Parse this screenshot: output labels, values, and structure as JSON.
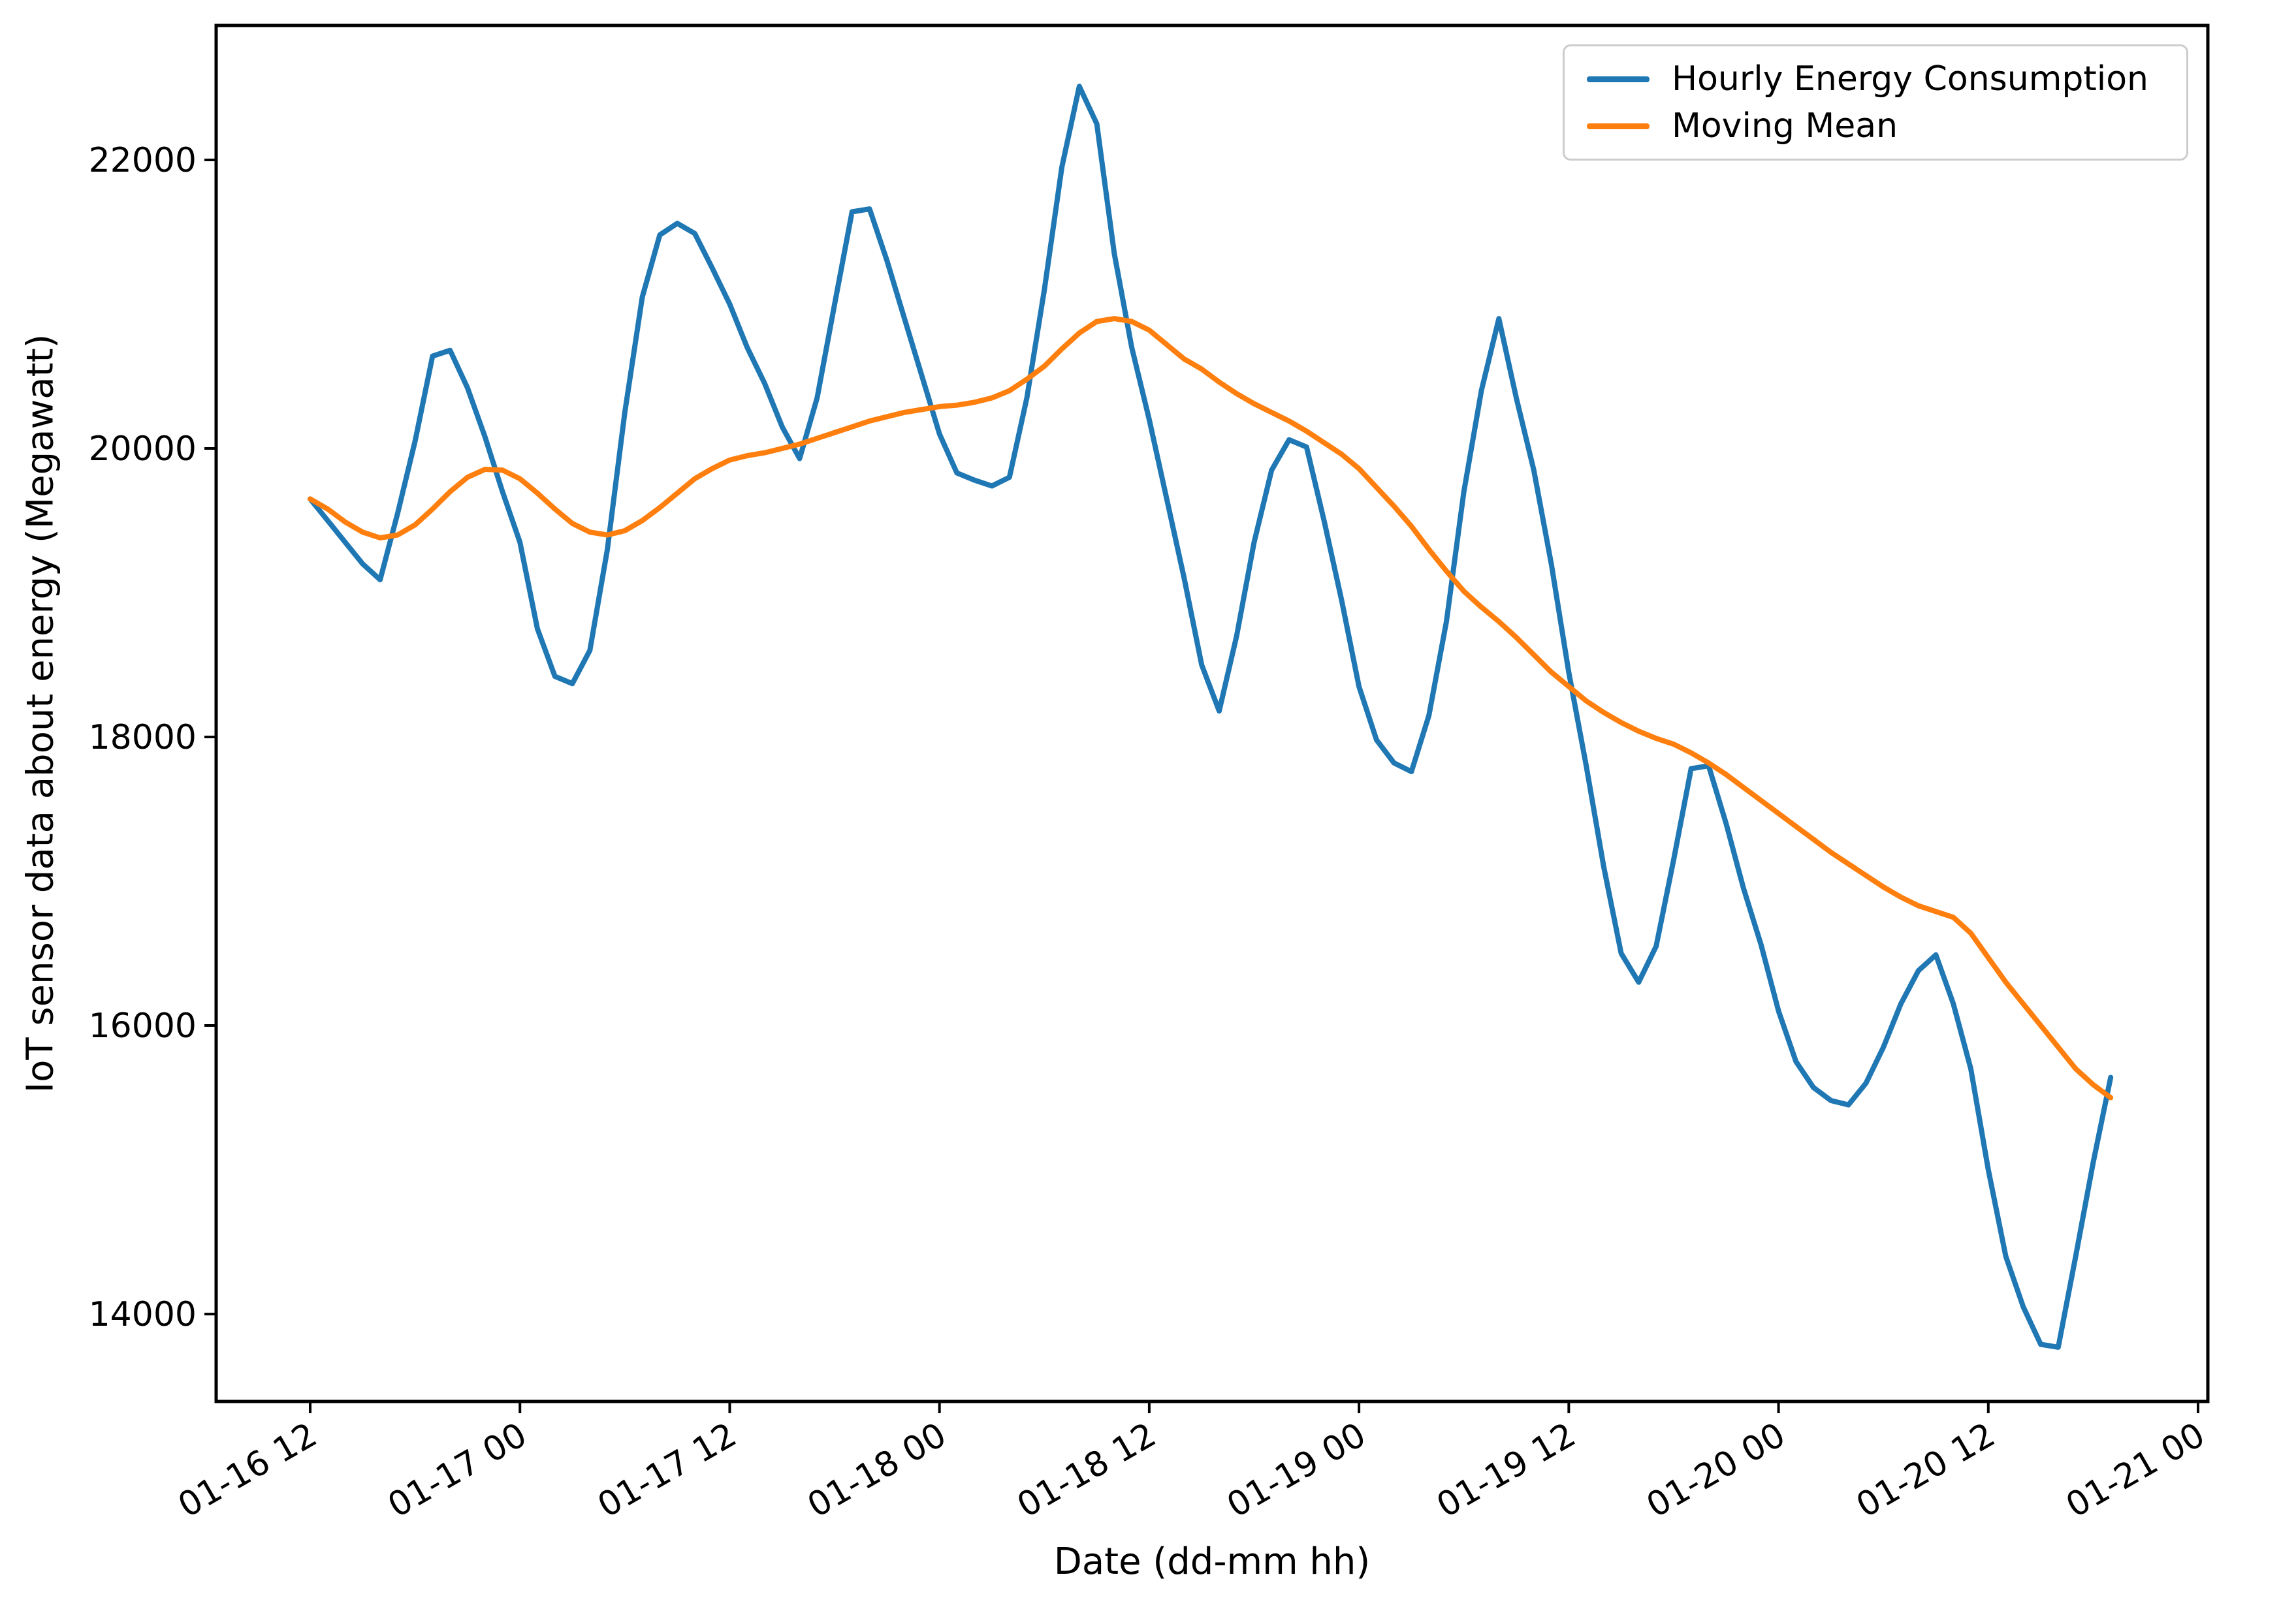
{
  "chart_data": {
    "type": "line",
    "title": "",
    "xlabel": "Date (dd-mm hh)",
    "ylabel": "IoT sensor data about energy (Megawatt)",
    "legend_position": "upper right",
    "grid": false,
    "x_start": "01-16 12:00",
    "x_interval_hours": 1,
    "xlim_hours": [
      -5.38,
      108.56
    ],
    "ylim": [
      13394,
      22932
    ],
    "x_tick_hours": [
      0,
      12,
      24,
      36,
      48,
      60,
      72,
      84,
      96,
      108
    ],
    "x_tick_labels": [
      "01-16 12",
      "01-17 00",
      "01-17 12",
      "01-18 00",
      "01-18 12",
      "01-19 00",
      "01-19 12",
      "01-20 00",
      "01-20 12",
      "01-21 00"
    ],
    "x_tick_rotation_deg": 30,
    "y_ticks": [
      14000,
      16000,
      18000,
      20000,
      22000
    ],
    "y_tick_labels": [
      "14000",
      "16000",
      "18000",
      "20000",
      "22000"
    ],
    "series": [
      {
        "name": "Hourly Energy Consumption",
        "color": "#1f77b4",
        "values": [
          19650,
          19500,
          19350,
          19200,
          19090,
          19550,
          20050,
          20640,
          20680,
          20420,
          20080,
          19700,
          19350,
          18750,
          18420,
          18370,
          18600,
          19300,
          20250,
          21050,
          21480,
          21560,
          21490,
          21250,
          21000,
          20700,
          20450,
          20150,
          19930,
          20350,
          21000,
          21640,
          21660,
          21300,
          20900,
          20500,
          20100,
          19830,
          19780,
          19740,
          19800,
          20350,
          21100,
          21950,
          22510,
          22250,
          21350,
          20700,
          20200,
          19650,
          19100,
          18500,
          18180,
          18700,
          19350,
          19850,
          20060,
          20010,
          19500,
          18950,
          18350,
          17980,
          17820,
          17760,
          18150,
          18800,
          19700,
          20400,
          20900,
          20350,
          19850,
          19200,
          18450,
          17800,
          17100,
          16500,
          16300,
          16550,
          17150,
          17780,
          17800,
          17400,
          16950,
          16560,
          16100,
          15750,
          15570,
          15480,
          15450,
          15600,
          15850,
          16150,
          16380,
          16490,
          16150,
          15700,
          15000,
          14400,
          14050,
          13790,
          13770,
          14400,
          15050,
          15640
        ]
      },
      {
        "name": "Moving Mean",
        "color": "#ff7f0e",
        "values": [
          19650,
          19580,
          19490,
          19420,
          19380,
          19400,
          19470,
          19580,
          19700,
          19800,
          19855,
          19850,
          19790,
          19690,
          19580,
          19480,
          19420,
          19400,
          19430,
          19500,
          19590,
          19690,
          19790,
          19860,
          19920,
          19950,
          19970,
          20000,
          20030,
          20070,
          20110,
          20150,
          20190,
          20220,
          20250,
          20270,
          20290,
          20300,
          20320,
          20350,
          20400,
          20480,
          20570,
          20690,
          20800,
          20880,
          20900,
          20880,
          20820,
          20720,
          20620,
          20550,
          20460,
          20380,
          20310,
          20250,
          20190,
          20120,
          20040,
          19960,
          19860,
          19730,
          19600,
          19460,
          19300,
          19150,
          19010,
          18900,
          18800,
          18690,
          18570,
          18450,
          18350,
          18250,
          18170,
          18100,
          18040,
          17990,
          17950,
          17890,
          17820,
          17740,
          17650,
          17560,
          17470,
          17380,
          17290,
          17200,
          17120,
          17040,
          16960,
          16890,
          16830,
          16790,
          16750,
          16640,
          16470,
          16300,
          16150,
          16000,
          15850,
          15700,
          15590,
          15500
        ]
      }
    ]
  }
}
